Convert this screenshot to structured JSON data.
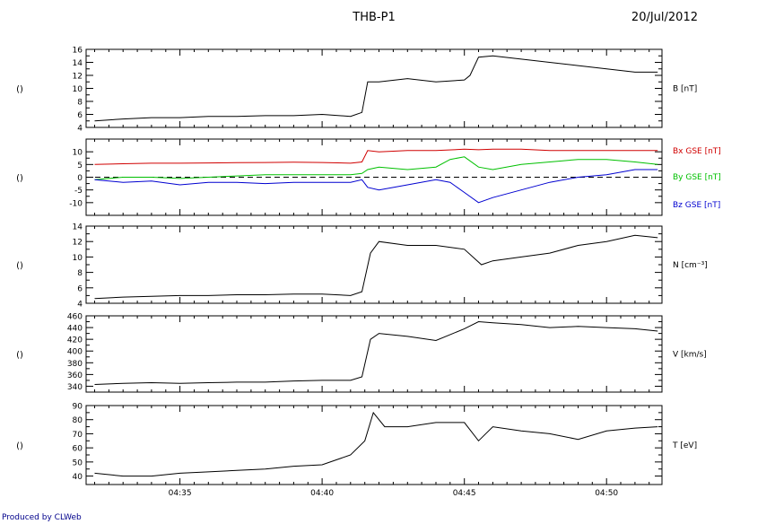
{
  "header": {
    "title": "THB-P1",
    "date": "20/Jul/2012"
  },
  "footer": {
    "credit": "Produced by CLWeb"
  },
  "chart_data": [
    {
      "type": "line",
      "panel": "B",
      "y_side_label": "()",
      "ylim": [
        4,
        16
      ],
      "yticks": [
        "4",
        "6",
        "8",
        "10",
        "12",
        "14",
        "16"
      ],
      "x_ticks": [
        "04:35",
        "04:40",
        "04:45",
        "04:50"
      ],
      "series": [
        {
          "name": "B [nT]",
          "color": "#000000",
          "x": [
            32.0,
            33.0,
            34.0,
            35.0,
            36.0,
            37.0,
            38.0,
            39.0,
            40.0,
            41.0,
            41.4,
            41.6,
            42.0,
            43.0,
            44.0,
            45.0,
            45.2,
            45.5,
            46.0,
            47.0,
            48.0,
            49.0,
            50.0,
            51.0,
            51.8
          ],
          "y": [
            5.0,
            5.3,
            5.5,
            5.5,
            5.7,
            5.7,
            5.8,
            5.8,
            6.0,
            5.7,
            6.3,
            11.0,
            11.0,
            11.5,
            11.0,
            11.3,
            12.0,
            14.8,
            15.0,
            14.5,
            14.0,
            13.5,
            13.0,
            12.5,
            12.5
          ]
        }
      ]
    },
    {
      "type": "line",
      "panel": "B GSE components",
      "y_side_label": "()",
      "ylim": [
        -15,
        15
      ],
      "yticks": [
        "-10",
        "-5",
        "0",
        "5",
        "10"
      ],
      "x_ticks": [
        "04:35",
        "04:40",
        "04:45",
        "04:50"
      ],
      "zero_line": true,
      "series": [
        {
          "name": "Bx GSE [nT]",
          "color": "#d00000",
          "x": [
            32.0,
            33.0,
            34.0,
            35.0,
            36.0,
            37.0,
            38.0,
            39.0,
            40.0,
            41.0,
            41.4,
            41.6,
            42.0,
            43.0,
            44.0,
            45.0,
            45.5,
            46.0,
            47.0,
            48.0,
            49.0,
            50.0,
            51.0,
            51.8
          ],
          "y": [
            5.0,
            5.3,
            5.5,
            5.5,
            5.6,
            5.7,
            5.8,
            5.9,
            5.8,
            5.5,
            6.0,
            10.5,
            10.0,
            10.5,
            10.5,
            11.0,
            10.8,
            11.0,
            11.0,
            10.5,
            10.5,
            10.5,
            10.5,
            10.5
          ]
        },
        {
          "name": "By GSE [nT]",
          "color": "#00c000",
          "x": [
            32.0,
            33.0,
            34.0,
            35.0,
            36.0,
            37.0,
            38.0,
            39.0,
            40.0,
            41.0,
            41.4,
            41.6,
            42.0,
            43.0,
            44.0,
            44.5,
            45.0,
            45.5,
            46.0,
            47.0,
            48.0,
            49.0,
            50.0,
            51.0,
            51.8
          ],
          "y": [
            -1.0,
            0.0,
            0.0,
            -0.5,
            0.0,
            0.5,
            1.0,
            1.0,
            1.0,
            1.0,
            1.5,
            3.0,
            4.0,
            3.0,
            4.0,
            7.0,
            8.0,
            4.0,
            3.0,
            5.0,
            6.0,
            7.0,
            7.0,
            6.0,
            5.0
          ]
        },
        {
          "name": "Bz GSE [nT]",
          "color": "#0000d0",
          "x": [
            32.0,
            33.0,
            34.0,
            35.0,
            36.0,
            37.0,
            38.0,
            39.0,
            40.0,
            41.0,
            41.4,
            41.6,
            42.0,
            43.0,
            44.0,
            44.5,
            45.0,
            45.5,
            46.0,
            47.0,
            48.0,
            49.0,
            50.0,
            51.0,
            51.8
          ],
          "y": [
            -1.0,
            -2.0,
            -1.5,
            -3.0,
            -2.0,
            -2.0,
            -2.5,
            -2.0,
            -2.0,
            -2.0,
            -1.0,
            -4.0,
            -5.0,
            -3.0,
            -1.0,
            -2.0,
            -6.0,
            -10.0,
            -8.0,
            -5.0,
            -2.0,
            0.0,
            1.0,
            3.0,
            3.0
          ]
        }
      ]
    },
    {
      "type": "line",
      "panel": "N",
      "y_side_label": "()",
      "ylim": [
        4,
        14
      ],
      "yticks": [
        "4",
        "6",
        "8",
        "10",
        "12",
        "14"
      ],
      "x_ticks": [
        "04:35",
        "04:40",
        "04:45",
        "04:50"
      ],
      "series": [
        {
          "name": "N [cm^-3]",
          "color": "#000000",
          "x": [
            32.0,
            33.0,
            34.0,
            35.0,
            36.0,
            37.0,
            38.0,
            39.0,
            40.0,
            41.0,
            41.4,
            41.7,
            42.0,
            43.0,
            44.0,
            45.0,
            45.6,
            46.0,
            47.0,
            48.0,
            49.0,
            50.0,
            51.0,
            51.8
          ],
          "y": [
            4.6,
            4.8,
            4.9,
            5.0,
            5.0,
            5.1,
            5.1,
            5.2,
            5.2,
            5.0,
            5.5,
            10.5,
            12.0,
            11.5,
            11.5,
            11.0,
            9.0,
            9.5,
            10.0,
            10.5,
            11.5,
            12.0,
            12.8,
            12.5
          ]
        }
      ]
    },
    {
      "type": "line",
      "panel": "V",
      "y_side_label": "()",
      "ylim": [
        330,
        460
      ],
      "yticks": [
        "340",
        "360",
        "380",
        "400",
        "420",
        "440",
        "460"
      ],
      "x_ticks": [
        "04:35",
        "04:40",
        "04:45",
        "04:50"
      ],
      "series": [
        {
          "name": "V [km/s]",
          "color": "#000000",
          "x": [
            32.0,
            33.0,
            34.0,
            35.0,
            36.0,
            37.0,
            38.0,
            39.0,
            40.0,
            41.0,
            41.4,
            41.7,
            42.0,
            43.0,
            44.0,
            45.0,
            45.5,
            46.0,
            47.0,
            48.0,
            49.0,
            50.0,
            51.0,
            51.8
          ],
          "y": [
            343,
            345,
            346,
            345,
            346,
            347,
            347,
            349,
            350,
            350,
            356,
            420,
            430,
            425,
            418,
            438,
            450,
            448,
            445,
            440,
            442,
            440,
            438,
            434
          ]
        }
      ]
    },
    {
      "type": "line",
      "panel": "T",
      "y_side_label": "()",
      "ylim": [
        34,
        90
      ],
      "yticks": [
        "40",
        "50",
        "60",
        "70",
        "80",
        "90"
      ],
      "x_ticks": [
        "04:35",
        "04:40",
        "04:45",
        "04:50"
      ],
      "series": [
        {
          "name": "T [eV]",
          "color": "#000000",
          "x": [
            32.0,
            33.0,
            34.0,
            35.0,
            36.0,
            37.0,
            38.0,
            39.0,
            40.0,
            41.0,
            41.5,
            41.8,
            42.2,
            43.0,
            44.0,
            45.0,
            45.5,
            46.0,
            47.0,
            48.0,
            49.0,
            50.0,
            51.0,
            51.8
          ],
          "y": [
            42,
            40,
            40,
            42,
            43,
            44,
            45,
            47,
            48,
            55,
            65,
            85,
            75,
            75,
            78,
            78,
            65,
            75,
            72,
            70,
            66,
            72,
            74,
            75
          ]
        }
      ]
    }
  ]
}
